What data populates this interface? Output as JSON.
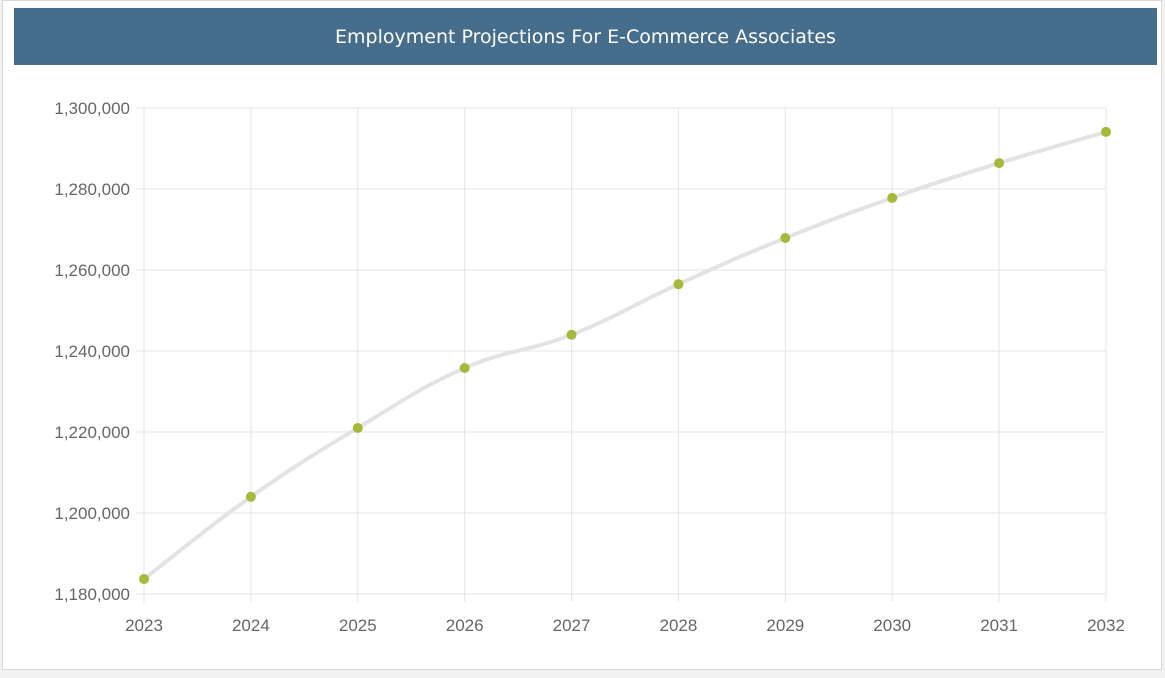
{
  "chart_data": {
    "type": "line",
    "title": "Employment Projections For E-Commerce Associates",
    "xlabel": "",
    "ylabel": "",
    "categories": [
      "2023",
      "2024",
      "2025",
      "2026",
      "2027",
      "2028",
      "2029",
      "2030",
      "2031",
      "2032"
    ],
    "values": [
      1183700,
      1204000,
      1221000,
      1235800,
      1244000,
      1256500,
      1267900,
      1277800,
      1286400,
      1294100
    ],
    "ylim": [
      1180000,
      1300000
    ],
    "yticks": [
      "1,180,000",
      "1,200,000",
      "1,220,000",
      "1,240,000",
      "1,260,000",
      "1,280,000",
      "1,300,000"
    ],
    "grid": true,
    "legend": "none",
    "colors": {
      "header": "#466d8c",
      "line": "#e3e3e3",
      "point": "#a8b83a"
    }
  }
}
